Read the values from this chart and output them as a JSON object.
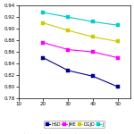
{
  "x": [
    20,
    30,
    40,
    50
  ],
  "series": {
    "HSD": [
      0.85,
      0.828,
      0.818,
      0.8
    ],
    "JME": [
      0.876,
      0.864,
      0.86,
      0.85
    ],
    "DGJD": [
      0.91,
      0.897,
      0.886,
      0.878
    ],
    "J": [
      0.928,
      0.92,
      0.912,
      0.906
    ]
  },
  "colors": {
    "HSD": "#00008B",
    "JME": "#FF00FF",
    "DGJD": "#CCCC00",
    "J": "#00CCCC"
  },
  "markers": {
    "HSD": "s",
    "JME": "s",
    "DGJD": "s",
    "J": "s"
  },
  "xlim": [
    10,
    55
  ],
  "ylim": [
    0.78,
    0.94
  ],
  "yticks": [
    0.78,
    0.8,
    0.82,
    0.84,
    0.86,
    0.88,
    0.9,
    0.92,
    0.94
  ],
  "xticks": [
    10,
    20,
    30,
    40,
    50
  ],
  "title_fontsize": 5.0,
  "legend_labels": [
    "HSD",
    "JME",
    "DGJD",
    "J"
  ]
}
